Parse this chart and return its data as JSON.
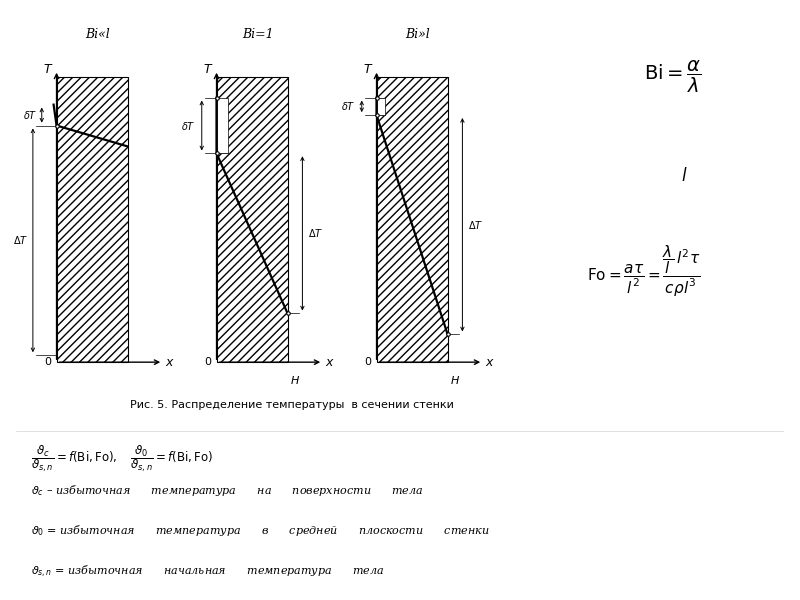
{
  "bg_color": "#ffffff",
  "fig_width": 8.0,
  "fig_height": 6.0,
  "title_caption": "Рис. 5. Распределение температуры  в сечении стенки",
  "panel_titles": [
    "Bi«l",
    "Bi=1",
    "Bi»l"
  ]
}
